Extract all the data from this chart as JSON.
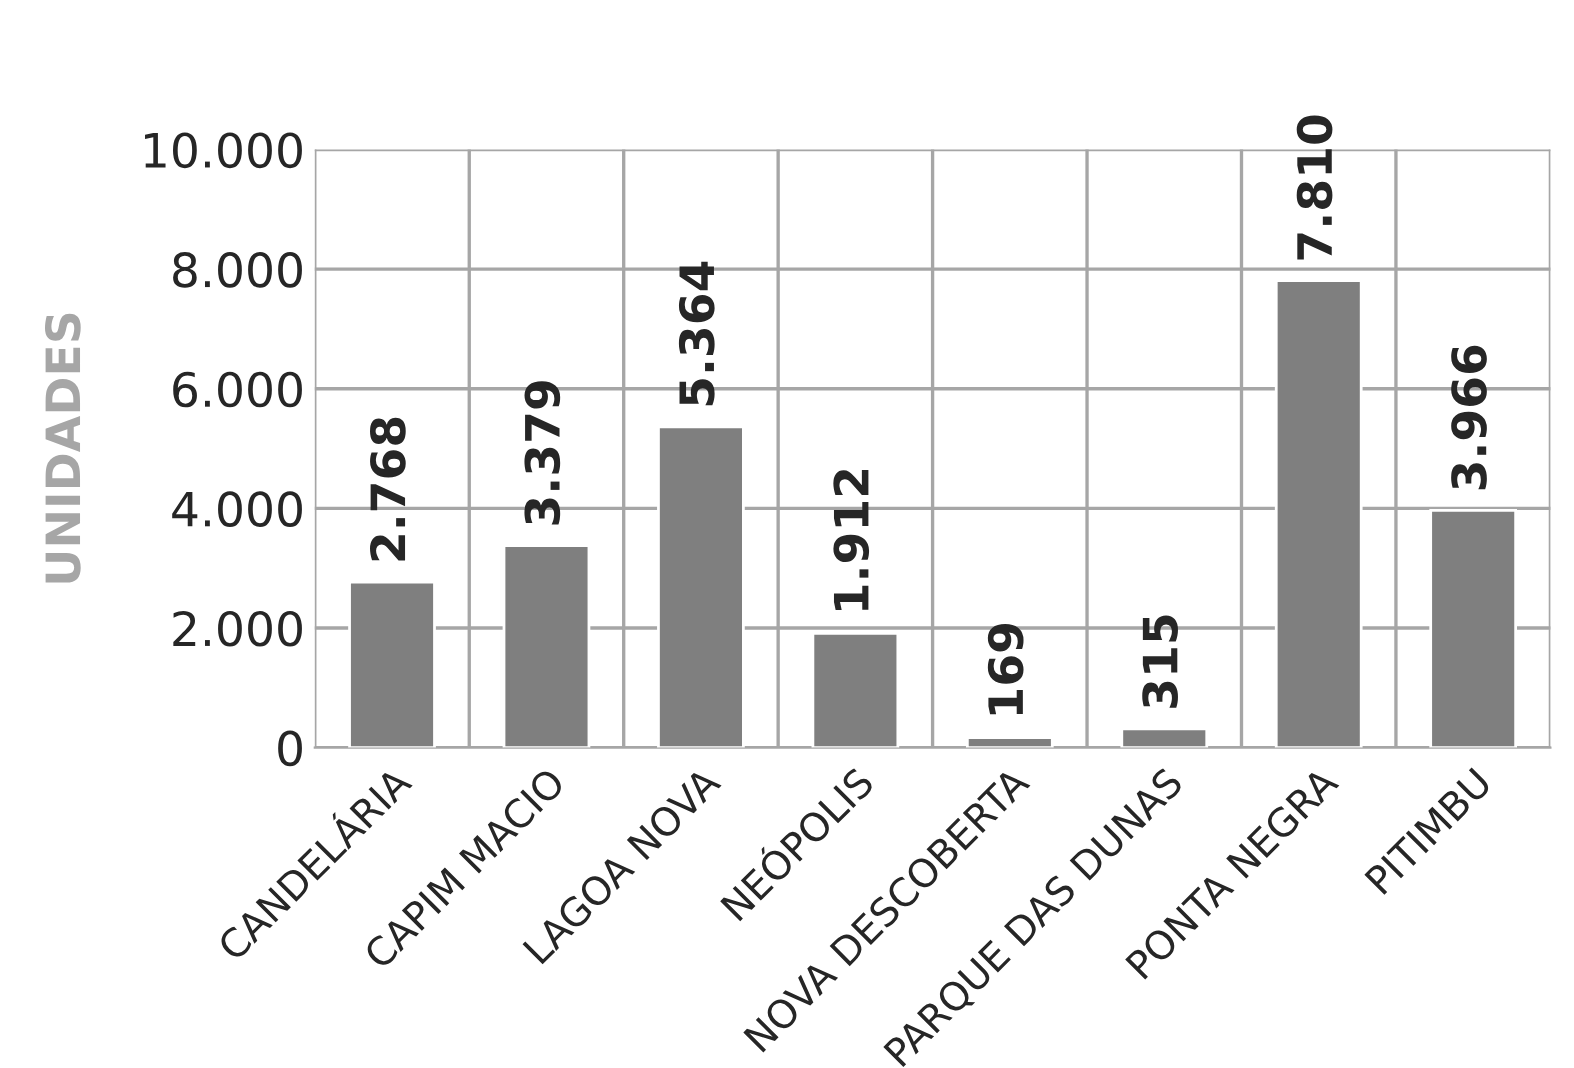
{
  "chart_data": {
    "type": "bar",
    "ylabel": "UNIDADES",
    "categories": [
      "CANDELÁRIA",
      "CAPIM MACIO",
      "LAGOA NOVA",
      "NEÓPOLIS",
      "NOVA DESCOBERTA",
      "PARQUE DAS DUNAS",
      "PONTA NEGRA",
      "PITIMBU"
    ],
    "values": [
      2768,
      3379,
      5364,
      1912,
      169,
      315,
      7810,
      3966
    ],
    "value_labels": [
      "2.768",
      "3.379",
      "5.364",
      "1.912",
      "169",
      "315",
      "7.810",
      "3.966"
    ],
    "color": "#7f7f7f",
    "ylim": [
      0,
      10000
    ],
    "yticks": [
      0,
      {
        "value": 2000,
        "label": "2.000"
      },
      {
        "value": 4000,
        "label": "4.000"
      },
      {
        "value": 6000,
        "label": "6.000"
      },
      {
        "value": 8000,
        "label": "8.000"
      },
      {
        "value": 10000,
        "label": "10.000"
      }
    ],
    "grid": true
  }
}
